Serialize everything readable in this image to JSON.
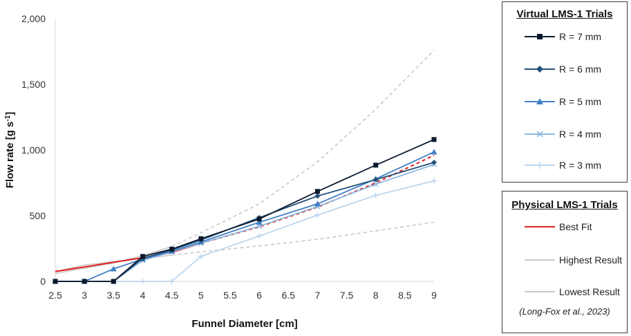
{
  "chart_data": {
    "type": "line",
    "title": "",
    "xlabel": "Funnel Diameter  [cm]",
    "ylabel_main": "Flow rate  [g s",
    "ylabel_sup": "-1",
    "ylabel_tail": "]",
    "ylim": [
      0,
      2000
    ],
    "categories": [
      "2.5",
      "3",
      "3.5",
      "4",
      "4.5",
      "5",
      "5.5",
      "6",
      "6.5",
      "7",
      "7.5",
      "8",
      "8.5",
      "9"
    ],
    "y_ticks": [
      "0",
      "500",
      "1,000",
      "1,500",
      "2,000"
    ],
    "grid": false,
    "series": [
      {
        "name": "R = 7 mm",
        "color": "#0b1a2e",
        "marker": "square",
        "points": [
          [
            2.5,
            0
          ],
          [
            3,
            0
          ],
          [
            3.5,
            0
          ],
          [
            4,
            190
          ],
          [
            4.5,
            245
          ],
          [
            5,
            325
          ],
          [
            6,
            475
          ],
          [
            7,
            685
          ],
          [
            8,
            885
          ],
          [
            9,
            1080
          ]
        ]
      },
      {
        "name": "R = 6 mm",
        "color": "#24507a",
        "marker": "diamond",
        "points": [
          [
            2.5,
            0
          ],
          [
            3,
            0
          ],
          [
            3.5,
            0
          ],
          [
            4,
            175
          ],
          [
            4.5,
            240
          ],
          [
            5,
            315
          ],
          [
            6,
            485
          ],
          [
            7,
            650
          ],
          [
            8,
            775
          ],
          [
            9,
            905
          ]
        ]
      },
      {
        "name": "R = 5 mm",
        "color": "#3f7fc4",
        "marker": "triangle",
        "points": [
          [
            2.5,
            0
          ],
          [
            3,
            0
          ],
          [
            3.5,
            95
          ],
          [
            4,
            170
          ],
          [
            4.5,
            230
          ],
          [
            5,
            300
          ],
          [
            6,
            450
          ],
          [
            7,
            590
          ],
          [
            8,
            780
          ],
          [
            9,
            985
          ]
        ]
      },
      {
        "name": "R = 4 mm",
        "color": "#8fb6de",
        "marker": "x",
        "points": [
          [
            2.5,
            0
          ],
          [
            3,
            0
          ],
          [
            3.5,
            0
          ],
          [
            4,
            160
          ],
          [
            4.5,
            225
          ],
          [
            5,
            290
          ],
          [
            6,
            420
          ],
          [
            7,
            570
          ],
          [
            8,
            740
          ],
          [
            9,
            890
          ]
        ]
      },
      {
        "name": "R = 3 mm",
        "color": "#bcd6ee",
        "marker": "plus",
        "points": [
          [
            2.5,
            0
          ],
          [
            3,
            0
          ],
          [
            3.5,
            0
          ],
          [
            4,
            0
          ],
          [
            4.5,
            0
          ],
          [
            5,
            190
          ],
          [
            6,
            345
          ],
          [
            7,
            505
          ],
          [
            8,
            655
          ],
          [
            9,
            765
          ]
        ]
      }
    ],
    "fits": [
      {
        "name": "Best Fit",
        "color": "#e02020",
        "solid": [
          [
            2.5,
            75
          ],
          [
            3,
            110
          ],
          [
            3.5,
            145
          ],
          [
            4,
            180
          ],
          [
            4.5,
            220
          ],
          [
            5,
            290
          ]
        ],
        "dashed": [
          [
            5,
            290
          ],
          [
            6,
            415
          ],
          [
            7,
            565
          ],
          [
            8,
            750
          ],
          [
            9,
            960
          ]
        ]
      },
      {
        "name": "Highest Result",
        "color": "#c8c8c8",
        "solid": [
          [
            2.5,
            60
          ],
          [
            3,
            100
          ],
          [
            3.5,
            140
          ],
          [
            4,
            195
          ],
          [
            4.5,
            265
          ]
        ],
        "dashed": [
          [
            4.5,
            265
          ],
          [
            5,
            370
          ],
          [
            6,
            590
          ],
          [
            7,
            910
          ],
          [
            8,
            1310
          ],
          [
            9,
            1760
          ]
        ]
      },
      {
        "name": "Lowest Result",
        "color": "#c8c8c8",
        "solid": [
          [
            2.5,
            75
          ],
          [
            3,
            125
          ],
          [
            3.5,
            150
          ],
          [
            4,
            175
          ],
          [
            4.5,
            200
          ]
        ],
        "dashed": [
          [
            4.5,
            200
          ],
          [
            5,
            225
          ],
          [
            6,
            270
          ],
          [
            7,
            320
          ],
          [
            8,
            385
          ],
          [
            9,
            450
          ]
        ]
      }
    ]
  },
  "legend_virtual": {
    "title": "Virtual LMS-1 Trials",
    "items": [
      "R = 7 mm",
      "R = 6 mm",
      "R = 5 mm",
      "R = 4 mm",
      "R = 3 mm"
    ]
  },
  "legend_physical": {
    "title": "Physical LMS-1 Trials",
    "items": [
      "Best Fit",
      "Highest Result",
      "Lowest Result"
    ],
    "citation": "(Long-Fox et al., 2023)"
  }
}
